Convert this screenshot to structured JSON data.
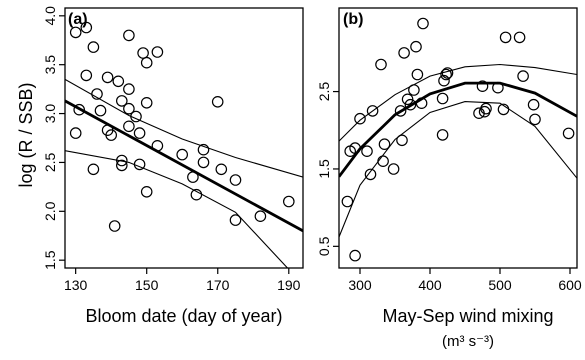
{
  "colors": {
    "ink": "#000000",
    "background": "#ffffff"
  },
  "chart_data": [
    {
      "type": "scatter",
      "panel_label": "(a)",
      "xlabel": "Bloom date (day of year)",
      "ylabel": "log (R / SSB)",
      "xlim": [
        127,
        194
      ],
      "ylim": [
        1.42,
        4.08
      ],
      "x_ticks": [
        130,
        150,
        170,
        190
      ],
      "x_tick_labels": [
        "130",
        "150",
        "170",
        "190"
      ],
      "y_ticks": [
        1.5,
        2.0,
        2.5,
        3.0,
        3.5,
        4.0
      ],
      "y_tick_labels": [
        "1.5",
        "2.0",
        "2.5",
        "3.0",
        "3.5",
        "4.0"
      ],
      "points": [
        {
          "x": 130,
          "y": 3.83
        },
        {
          "x": 130,
          "y": 2.8
        },
        {
          "x": 131,
          "y": 3.04
        },
        {
          "x": 133,
          "y": 3.88
        },
        {
          "x": 133,
          "y": 3.39
        },
        {
          "x": 135,
          "y": 3.68
        },
        {
          "x": 136,
          "y": 3.2
        },
        {
          "x": 135,
          "y": 2.43
        },
        {
          "x": 137,
          "y": 3.03
        },
        {
          "x": 139,
          "y": 3.37
        },
        {
          "x": 139,
          "y": 2.83
        },
        {
          "x": 140,
          "y": 2.78
        },
        {
          "x": 141,
          "y": 1.85
        },
        {
          "x": 142,
          "y": 3.33
        },
        {
          "x": 143,
          "y": 3.13
        },
        {
          "x": 143,
          "y": 2.52
        },
        {
          "x": 143,
          "y": 2.47
        },
        {
          "x": 145,
          "y": 3.8
        },
        {
          "x": 145,
          "y": 3.25
        },
        {
          "x": 145,
          "y": 3.05
        },
        {
          "x": 145,
          "y": 2.87
        },
        {
          "x": 147,
          "y": 2.97
        },
        {
          "x": 148,
          "y": 2.8
        },
        {
          "x": 148,
          "y": 2.48
        },
        {
          "x": 149,
          "y": 3.62
        },
        {
          "x": 150,
          "y": 3.52
        },
        {
          "x": 150,
          "y": 3.11
        },
        {
          "x": 150,
          "y": 2.2
        },
        {
          "x": 153,
          "y": 3.63
        },
        {
          "x": 153,
          "y": 2.67
        },
        {
          "x": 160,
          "y": 2.58
        },
        {
          "x": 163,
          "y": 2.35
        },
        {
          "x": 164,
          "y": 2.17
        },
        {
          "x": 166,
          "y": 2.63
        },
        {
          "x": 166,
          "y": 2.5
        },
        {
          "x": 170,
          "y": 3.12
        },
        {
          "x": 171,
          "y": 2.43
        },
        {
          "x": 175,
          "y": 2.32
        },
        {
          "x": 175,
          "y": 1.91
        },
        {
          "x": 182,
          "y": 1.95
        },
        {
          "x": 190,
          "y": 2.1
        }
      ],
      "fit": [
        [
          127,
          3.13
        ],
        [
          194,
          1.8
        ]
      ],
      "ci_upper": [
        [
          127,
          3.35
        ],
        [
          145,
          2.98
        ],
        [
          160,
          2.74
        ],
        [
          175,
          2.55
        ],
        [
          194,
          2.35
        ]
      ],
      "ci_lower": [
        [
          127,
          2.62
        ],
        [
          145,
          2.5
        ],
        [
          160,
          2.28
        ],
        [
          175,
          1.99
        ],
        [
          194,
          1.25
        ]
      ],
      "grid": false
    },
    {
      "type": "scatter",
      "panel_label": "(b)",
      "xlabel": "May-Sep wind mixing",
      "xlabel_units": "(m³ s⁻³)",
      "ylabel": "",
      "xlim": [
        270,
        610
      ],
      "ylim": [
        0.22,
        3.58
      ],
      "x_ticks": [
        300,
        400,
        500,
        600
      ],
      "x_tick_labels": [
        "300",
        "400",
        "500",
        "600"
      ],
      "y_ticks": [
        0.5,
        1.5,
        2.5
      ],
      "y_tick_labels": [
        "0.5",
        "1.5",
        "2.5"
      ],
      "points": [
        {
          "x": 282,
          "y": 1.08
        },
        {
          "x": 286,
          "y": 1.73
        },
        {
          "x": 293,
          "y": 1.77
        },
        {
          "x": 293,
          "y": 0.38
        },
        {
          "x": 300,
          "y": 2.15
        },
        {
          "x": 310,
          "y": 1.73
        },
        {
          "x": 315,
          "y": 1.43
        },
        {
          "x": 318,
          "y": 2.25
        },
        {
          "x": 330,
          "y": 2.85
        },
        {
          "x": 333,
          "y": 1.6
        },
        {
          "x": 335,
          "y": 1.82
        },
        {
          "x": 348,
          "y": 1.5
        },
        {
          "x": 358,
          "y": 2.25
        },
        {
          "x": 360,
          "y": 1.87
        },
        {
          "x": 363,
          "y": 3.0
        },
        {
          "x": 368,
          "y": 2.4
        },
        {
          "x": 372,
          "y": 2.33
        },
        {
          "x": 377,
          "y": 2.52
        },
        {
          "x": 380,
          "y": 3.08
        },
        {
          "x": 382,
          "y": 2.72
        },
        {
          "x": 388,
          "y": 2.35
        },
        {
          "x": 390,
          "y": 3.38
        },
        {
          "x": 418,
          "y": 2.41
        },
        {
          "x": 418,
          "y": 1.94
        },
        {
          "x": 420,
          "y": 2.64
        },
        {
          "x": 423,
          "y": 2.72
        },
        {
          "x": 425,
          "y": 2.74
        },
        {
          "x": 470,
          "y": 2.22
        },
        {
          "x": 475,
          "y": 2.57
        },
        {
          "x": 478,
          "y": 2.24
        },
        {
          "x": 480,
          "y": 2.28
        },
        {
          "x": 497,
          "y": 2.55
        },
        {
          "x": 505,
          "y": 2.27
        },
        {
          "x": 508,
          "y": 3.2
        },
        {
          "x": 528,
          "y": 3.2
        },
        {
          "x": 533,
          "y": 2.7
        },
        {
          "x": 548,
          "y": 2.33
        },
        {
          "x": 550,
          "y": 2.14
        },
        {
          "x": 598,
          "y": 1.96
        }
      ],
      "fit": [
        [
          270,
          1.4
        ],
        [
          300,
          1.76
        ],
        [
          350,
          2.2
        ],
        [
          400,
          2.47
        ],
        [
          450,
          2.61
        ],
        [
          500,
          2.61
        ],
        [
          550,
          2.48
        ],
        [
          610,
          2.18
        ]
      ],
      "ci_upper": [
        [
          270,
          1.86
        ],
        [
          300,
          2.13
        ],
        [
          350,
          2.46
        ],
        [
          400,
          2.7
        ],
        [
          450,
          2.82
        ],
        [
          500,
          2.85
        ],
        [
          550,
          2.81
        ],
        [
          610,
          2.72
        ]
      ],
      "ci_lower": [
        [
          270,
          0.62
        ],
        [
          300,
          1.29
        ],
        [
          350,
          1.88
        ],
        [
          400,
          2.23
        ],
        [
          450,
          2.37
        ],
        [
          500,
          2.35
        ],
        [
          550,
          2.05
        ],
        [
          610,
          1.38
        ]
      ],
      "grid": false
    }
  ]
}
